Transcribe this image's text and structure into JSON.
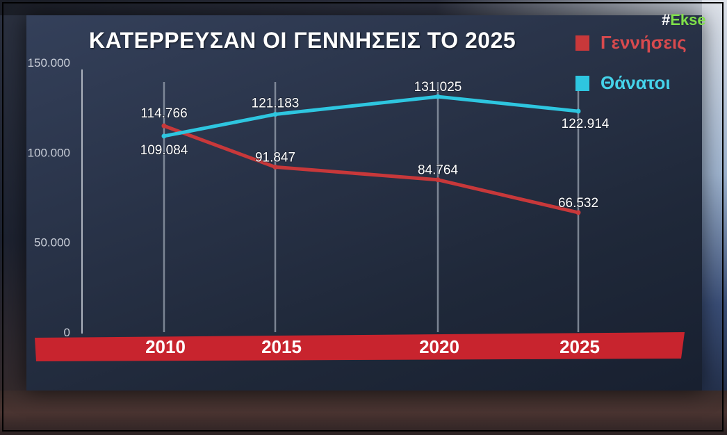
{
  "header": {
    "title": "ΚΑΤΕΡΡΕΥΣΑΝ ΟΙ ΓΕΝΝΗΣΕΙΣ ΤΟ 2025"
  },
  "brand": {
    "hash": "#",
    "name": "Ekse"
  },
  "colors": {
    "births": "#c8383a",
    "deaths": "#2ec6e0",
    "axis_band": "#c8242e",
    "births_label": "#d84a4e",
    "deaths_label": "#45d3ea"
  },
  "chart_data": {
    "type": "line",
    "title": "ΚΑΤΕΡΡΕΥΣΑΝ ΟΙ ΓΕΝΝΗΣΕΙΣ ΤΟ 2025",
    "x": [
      "2010",
      "2015",
      "2020",
      "2025"
    ],
    "series": [
      {
        "name": "Γεννήσεις",
        "values": [
          114766,
          91847,
          84764,
          66532
        ],
        "labels": [
          "114.766",
          "91.847",
          "84.764",
          "66.532"
        ]
      },
      {
        "name": "Θάνατοι",
        "values": [
          109084,
          121183,
          131025,
          122914
        ],
        "labels": [
          "109.084",
          "121.183",
          "131.025",
          "122.914"
        ]
      }
    ],
    "y_ticks": [
      {
        "value": 0,
        "label": "0"
      },
      {
        "value": 50000,
        "label": "50.000"
      },
      {
        "value": 100000,
        "label": "100.000"
      },
      {
        "value": 150000,
        "label": "150.000"
      }
    ],
    "ylim": [
      0,
      150000
    ],
    "xlabel": "",
    "ylabel": "",
    "grid": "vertical",
    "legend": "top-right"
  }
}
